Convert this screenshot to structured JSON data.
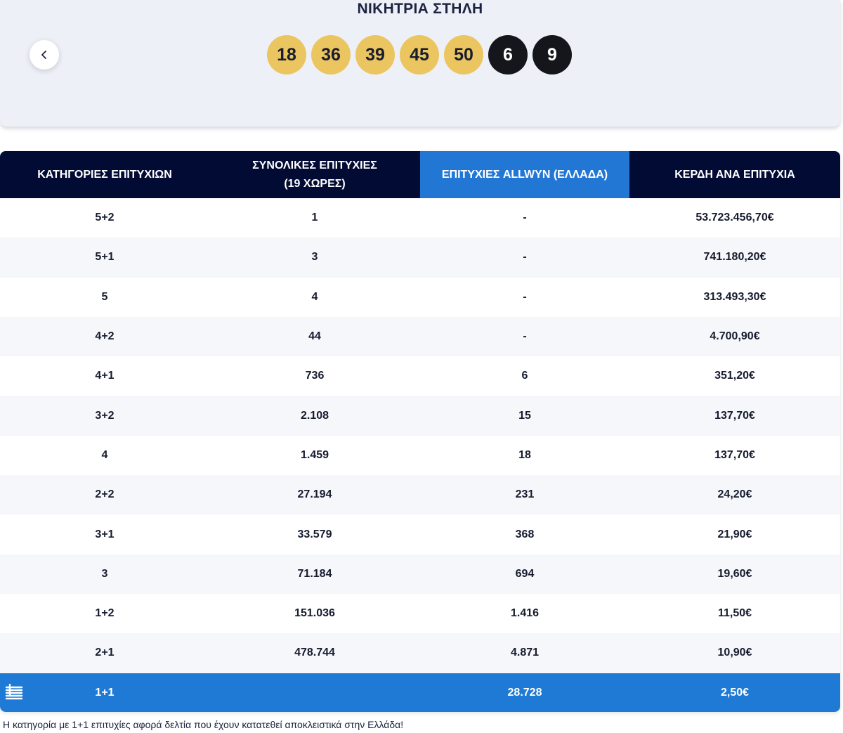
{
  "header": {
    "title": "ΝΙΚΗΤΡΙΑ ΣΤΗΛΗ",
    "back_icon": "chevron-left-icon",
    "main_numbers": [
      "18",
      "36",
      "39",
      "45",
      "50"
    ],
    "star_numbers": [
      "6",
      "9"
    ]
  },
  "table": {
    "columns": {
      "category": "ΚΑΤΗΓΟΡΙΕΣ ΕΠΙΤΥΧΙΩΝ",
      "total_line1": "ΣΥΝΟΛΙΚΕΣ ΕΠΙΤΥΧΙΕΣ",
      "total_line2": "(19 ΧΩΡΕΣ)",
      "allwyn": "ΕΠΙΤΥΧΙΕΣ ALLWYN (ΕΛΛΑΔΑ)",
      "prize": "ΚΕΡΔΗ ΑΝΑ ΕΠΙΤΥΧΙΑ"
    },
    "rows": [
      {
        "category": "5+2",
        "total": "1",
        "allwyn": "-",
        "prize": "53.723.456,70€"
      },
      {
        "category": "5+1",
        "total": "3",
        "allwyn": "-",
        "prize": "741.180,20€"
      },
      {
        "category": "5",
        "total": "4",
        "allwyn": "-",
        "prize": "313.493,30€"
      },
      {
        "category": "4+2",
        "total": "44",
        "allwyn": "-",
        "prize": "4.700,90€"
      },
      {
        "category": "4+1",
        "total": "736",
        "allwyn": "6",
        "prize": "351,20€"
      },
      {
        "category": "3+2",
        "total": "2.108",
        "allwyn": "15",
        "prize": "137,70€"
      },
      {
        "category": "4",
        "total": "1.459",
        "allwyn": "18",
        "prize": "137,70€"
      },
      {
        "category": "2+2",
        "total": "27.194",
        "allwyn": "231",
        "prize": "24,20€"
      },
      {
        "category": "3+1",
        "total": "33.579",
        "allwyn": "368",
        "prize": "21,90€"
      },
      {
        "category": "3",
        "total": "71.184",
        "allwyn": "694",
        "prize": "19,60€"
      },
      {
        "category": "1+2",
        "total": "151.036",
        "allwyn": "1.416",
        "prize": "11,50€"
      },
      {
        "category": "2+1",
        "total": "478.744",
        "allwyn": "4.871",
        "prize": "10,90€"
      }
    ],
    "greek_row": {
      "flag_icon": "greek-flag-icon",
      "category": "1+1",
      "total": "",
      "allwyn": "28.728",
      "prize": "2,50€"
    }
  },
  "footnote": "Η κατηγορία με 1+1 επιτυχίες αφορά δελτία που έχουν κατατεθεί αποκλειστικά στην Ελλάδα!",
  "colors": {
    "header_bg": "#020b33",
    "accent_blue": "#2377d4",
    "ball_gold": "#ebc560",
    "ball_black": "#14161c"
  }
}
